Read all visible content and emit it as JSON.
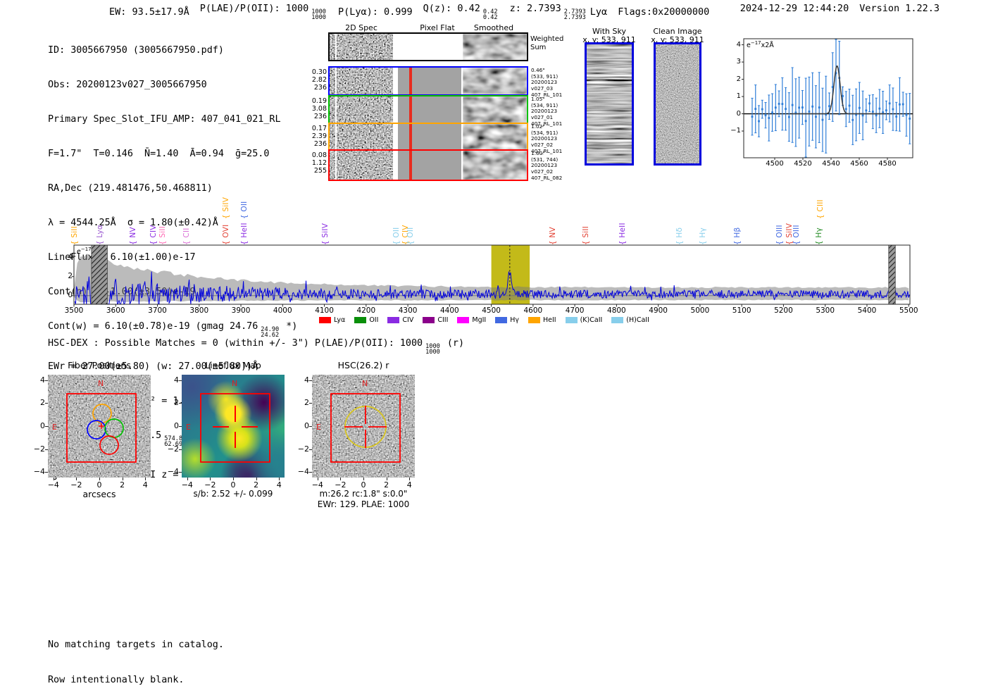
{
  "header": {
    "ew": "EW: 93.5±17.9Å",
    "plae_pre": "P(LAE)/P(OII): 1000",
    "plae_sup": "1000",
    "plae_sub": "1000",
    "plya": "P(Lyα): 0.999",
    "qz_pre": "Q(z): 0.42",
    "qz_sup": "0.42",
    "qz_sub": "0.42",
    "z_pre": "z: 2.7393",
    "z_sup": "2.7393",
    "z_sub": "2.7393",
    "line_type": "Lyα",
    "flags": "Flags:0x20000000",
    "datetime": "2024-12-29 12:44:20",
    "version": "Version 1.22.3"
  },
  "info": {
    "l01": "ID: 3005667950 (3005667950.pdf)",
    "l02": "Obs: 20200123v027_3005667950",
    "l03": "Primary Spec_Slot_IFU_AMP: 407_041_021_RL",
    "l04": "F=1.7\"  T=0.146  N̄=1.40  Ā=0.94  ḡ=25.0",
    "l05": "RA,Dec (219.481476,50.468811)",
    "l06": "λ = 4544.25Å  σ = 1.80(±0.42)Å",
    "l07": "LineFlux = 6.10(±1.00)e-17",
    "l08": "Cont(n) = -1.00(±3.50)e-19",
    "l09_pre": "Cont(w) = 6.10(±0.78)e-19 (gmag 24.76",
    "l09_sup": "24.90",
    "l09_sub": "24.62",
    "l09_post": "*)",
    "l10": "EWr = 27.00(±5.80) (w: 27.00(±5.80))Å",
    "l11": "S/N = 5.3(±0.5)  χ² = 1.2(±0.2)",
    "l12_pre": "P(LAE)/P(OII): 176.5",
    "l12_sup": "574.8",
    "l12_sub": "62.69",
    "l13": "LyA z = 2.7381  OII z = 0.2190"
  },
  "spec2d": {
    "col_titles": [
      "2D Spec",
      "Pixel Flat",
      "Smoothed"
    ],
    "rows": [
      {
        "border": "#000000",
        "left": [
          "",
          "",
          ""
        ],
        "right": [
          "Weighted",
          "Sum",
          "",
          "",
          ""
        ]
      },
      {
        "border": "#0000ff",
        "left": [
          "0.30",
          "2.82",
          "236"
        ],
        "right": [
          "0.46\"",
          "(533, 911)",
          "20200123",
          "v027_03",
          "407_RL_101"
        ]
      },
      {
        "border": "#00c000",
        "left": [
          "0.19",
          "3.08",
          "236"
        ],
        "right": [
          "1.05\"",
          "(534, 911)",
          "20200123",
          "v027_01",
          "407_RL_101"
        ]
      },
      {
        "border": "#ffa500",
        "left": [
          "0.17",
          "2.39",
          "236"
        ],
        "right": [
          "1.02\"",
          "(534, 911)",
          "20200123",
          "v027_02",
          "407_RL_101"
        ]
      },
      {
        "border": "#ff0000",
        "left": [
          "0.08",
          "1.12",
          "255"
        ],
        "right": [
          "1.60\"",
          "(531, 744)",
          "20200123",
          "v027_02",
          "407_RL_082"
        ]
      }
    ]
  },
  "cutouts": {
    "with_sky_title": "With Sky",
    "with_sky_sub": "x, y: 533, 911",
    "clean_title": "Clean Image",
    "clean_sub": "x, y: 533, 911"
  },
  "flux_label": {
    "base": "e",
    "exp": "−17",
    "rest": "x2Å"
  },
  "hsc_line": {
    "pre": "HSC-DEX : Possible Matches = 0 (within +/- 3\")  P(LAE)/P(OII): 1000",
    "sup": "1000",
    "sub": "1000",
    "post": "(r)"
  },
  "panels": {
    "ytick_labels": [
      "4",
      "2",
      "0",
      "−2",
      "−4"
    ],
    "xtick_labels": [
      "−4",
      "−2",
      "0",
      "2",
      "4"
    ],
    "fiber": {
      "title": "Fiber Positions",
      "xlabel": "arcsecs",
      "north": "N",
      "east": "E",
      "circle_colors": [
        "#ffa500",
        "#0000ff",
        "#00c000",
        "#ff0000"
      ]
    },
    "lineflux": {
      "title": "Lineflux Map",
      "caption": "s/b: 2.52 +/- 0.099",
      "north": "N",
      "east": "E"
    },
    "hsc": {
      "title": "HSC(26.2) r",
      "caption": "m:26.2 rc:1.8\" s:0.0\"",
      "caption2": "EWr: 129. PLAE: 1000",
      "north": "N",
      "east": "E"
    }
  },
  "footer": {
    "l1": "No matching targets in catalog.",
    "l2": "Row intentionally blank."
  },
  "chart_data": [
    {
      "id": "line_fit_inset",
      "type": "scatter",
      "title": "",
      "ylabel": "e−17x2Å",
      "xlim": [
        4478,
        4598
      ],
      "ylim": [
        -2.55,
        4.35
      ],
      "xticks": [
        4500,
        4520,
        4540,
        4560,
        4580
      ],
      "yticks": [
        4,
        3,
        2,
        1,
        0,
        -1
      ],
      "fit_center": 4544.25,
      "fit_sigma": 2.2,
      "fit_amplitude": 2.78,
      "marker_color": "#2f7ed8",
      "fit_color": "#3a3a3a",
      "zero_line_color": "#000000"
    },
    {
      "id": "full_spectrum",
      "type": "line",
      "title": "",
      "ylabel": "e−17x2Å",
      "xlim": [
        3500,
        5503
      ],
      "ylim": [
        -0.9,
        5.3
      ],
      "xticks": [
        3500,
        3600,
        3700,
        3800,
        3900,
        4000,
        4100,
        4200,
        4300,
        4400,
        4500,
        4600,
        4700,
        4800,
        4900,
        5000,
        5100,
        5200,
        5300,
        5400,
        5500
      ],
      "yticks": [
        0,
        2,
        4
      ],
      "line_color": "#0000dd",
      "envelope_color": "#777777",
      "peak_center": 4544.25,
      "peak_amplitude": 2.35,
      "highlight_band": {
        "x0": 4500,
        "x1": 4592,
        "color": "#bdb300"
      },
      "masked_bands": [
        [
          3542,
          3580
        ],
        [
          5452,
          5468
        ]
      ],
      "line_labels": [
        {
          "name": "SiII",
          "wl": 3502,
          "tier": 1,
          "color": "#ffa500"
        },
        {
          "name": "Lyα",
          "wl": 3564,
          "tier": 1,
          "color": "#9b59d0"
        },
        {
          "name": "NV",
          "wl": 3643,
          "tier": 1,
          "color": "#8a2be2"
        },
        {
          "name": "CIV",
          "wl": 3692,
          "tier": 1,
          "color": "#8a2be2"
        },
        {
          "name": "SiII",
          "wl": 3714,
          "tier": 1,
          "color": "#ff69b4"
        },
        {
          "name": "CII",
          "wl": 3770,
          "tier": 1,
          "color": "#da70d6"
        },
        {
          "name": "SiIV",
          "wl": 3866,
          "tier": 2,
          "color": "#ffa500"
        },
        {
          "name": "OVI",
          "wl": 3866,
          "tier": 1,
          "color": "#e34234"
        },
        {
          "name": "OII",
          "wl": 3910,
          "tier": 2,
          "color": "#4169e1"
        },
        {
          "name": "HeII",
          "wl": 3910,
          "tier": 1,
          "color": "#8a2be2"
        },
        {
          "name": "SiIV",
          "wl": 4103,
          "tier": 1,
          "color": "#8a2be2"
        },
        {
          "name": "OII",
          "wl": 4273,
          "tier": 1,
          "color": "#87ceeb"
        },
        {
          "name": "CIV",
          "wl": 4295,
          "tier": 1,
          "color": "#ffa500"
        },
        {
          "name": "OII",
          "wl": 4308,
          "tier": 1,
          "color": "#87ceeb"
        },
        {
          "name": "NV",
          "wl": 4648,
          "tier": 1,
          "color": "#e34234"
        },
        {
          "name": "SiII",
          "wl": 4727,
          "tier": 1,
          "color": "#e34234"
        },
        {
          "name": "HeII",
          "wl": 4815,
          "tier": 1,
          "color": "#8a2be2"
        },
        {
          "name": "Hδ",
          "wl": 4952,
          "tier": 1,
          "color": "#87ceeb"
        },
        {
          "name": "Hγ",
          "wl": 5007,
          "tier": 1,
          "color": "#87ceeb"
        },
        {
          "name": "Hβ",
          "wl": 5090,
          "tier": 1,
          "color": "#4169e1"
        },
        {
          "name": "OIII",
          "wl": 5191,
          "tier": 1,
          "color": "#4169e1"
        },
        {
          "name": "SiIV",
          "wl": 5215,
          "tier": 1,
          "color": "#e34234"
        },
        {
          "name": "OIII",
          "wl": 5232,
          "tier": 1,
          "color": "#4169e1"
        },
        {
          "name": "CIII",
          "wl": 5289,
          "tier": 2,
          "color": "#ffa500"
        },
        {
          "name": "Hγ",
          "wl": 5286,
          "tier": 1,
          "color": "#228b22"
        }
      ],
      "legend": [
        {
          "label": "Lyα",
          "color": "#ff0000"
        },
        {
          "label": "OII",
          "color": "#0a8f0a"
        },
        {
          "label": "CIV",
          "color": "#8a2be2"
        },
        {
          "label": "CIII",
          "color": "#8b008b"
        },
        {
          "label": "MgII",
          "color": "#ff00ff"
        },
        {
          "label": "Hγ",
          "color": "#4169e1"
        },
        {
          "label": "HeII",
          "color": "#ffa500"
        },
        {
          "label": "(K)CaII",
          "color": "#87ceeb"
        },
        {
          "label": "(H)CaII",
          "color": "#87ceeb"
        }
      ]
    }
  ]
}
